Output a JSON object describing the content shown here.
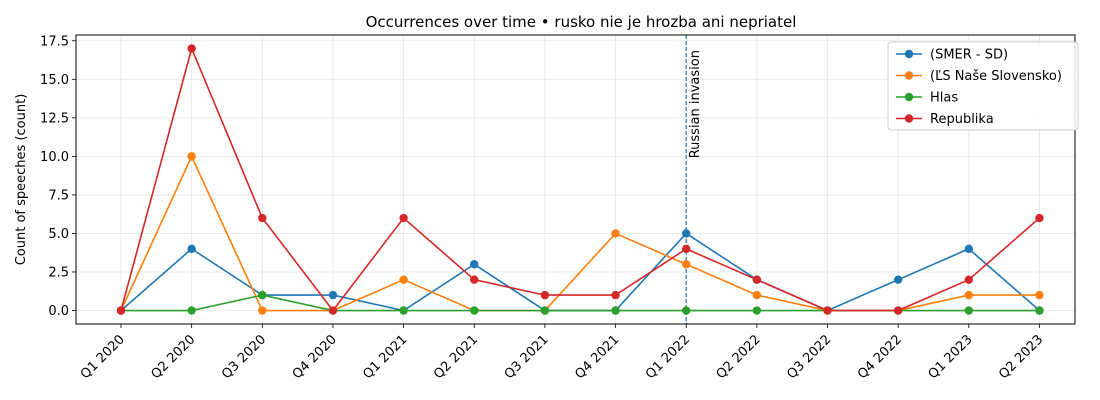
{
  "chart_data": {
    "type": "line",
    "title": "Occurrences over time • rusko nie je hrozba ani nepriatel",
    "xlabel": "",
    "ylabel": "Count of speeches (count)",
    "categories": [
      "Q1 2020",
      "Q2 2020",
      "Q3 2020",
      "Q4 2020",
      "Q1 2021",
      "Q2 2021",
      "Q3 2021",
      "Q4 2021",
      "Q1 2022",
      "Q2 2022",
      "Q3 2022",
      "Q4 2022",
      "Q1 2023",
      "Q2 2023"
    ],
    "ylim": [
      -0.875,
      17.875
    ],
    "yticks": [
      0.0,
      2.5,
      5.0,
      7.5,
      10.0,
      12.5,
      15.0,
      17.5
    ],
    "ytick_labels": [
      "0.0",
      "2.5",
      "5.0",
      "7.5",
      "10.0",
      "12.5",
      "15.0",
      "17.5"
    ],
    "grid": true,
    "legend_position": "top-right",
    "series": [
      {
        "name": "(SMER - SD)",
        "color": "#1f77b4",
        "values": [
          0,
          4,
          1,
          1,
          0,
          3,
          0,
          0,
          5,
          2,
          0,
          2,
          4,
          0
        ]
      },
      {
        "name": "(ĽS Naše Slovensko)",
        "color": "#ff7f0e",
        "values": [
          0,
          10,
          0,
          0,
          2,
          0,
          0,
          5,
          3,
          1,
          0,
          0,
          1,
          1
        ]
      },
      {
        "name": "Hlas",
        "color": "#2ca02c",
        "values": [
          0,
          0,
          1,
          0,
          0,
          0,
          0,
          0,
          0,
          0,
          0,
          0,
          0,
          0
        ]
      },
      {
        "name": "Republika",
        "color": "#d62728",
        "values": [
          0,
          17,
          6,
          0,
          6,
          2,
          1,
          1,
          4,
          2,
          0,
          0,
          2,
          6
        ]
      }
    ],
    "annotations": [
      {
        "type": "vline",
        "x": "Q1 2022",
        "label": "Russian invasion",
        "color": "#1f77b4"
      }
    ]
  }
}
